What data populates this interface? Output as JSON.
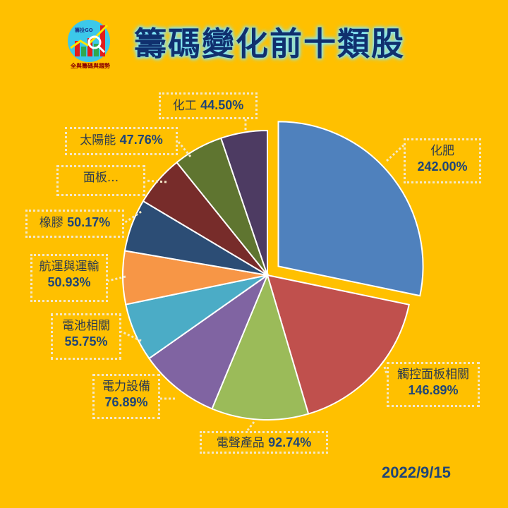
{
  "header": {
    "title": "籌碼變化前十類股",
    "logo": {
      "top_text": "籌投GO",
      "bottom_text": "全與籌碼與趨勢"
    }
  },
  "date": "2022/9/15",
  "colors": {
    "background": "#ffc000",
    "label_text": "#1f4578",
    "title_text": "#10306e"
  },
  "labels": [
    {
      "name": "化肥",
      "value_text": "242.00%",
      "two_line": true
    },
    {
      "name": "觸控面板相關",
      "value_text": "146.89%",
      "two_line": true
    },
    {
      "name": "電聲產品",
      "value_text": "92.74%",
      "two_line": false
    },
    {
      "name": "電力設備",
      "value_text": "76.89%",
      "two_line": true
    },
    {
      "name": "電池相關",
      "value_text": "55.75%",
      "two_line": true
    },
    {
      "name": "航運與運輸",
      "value_text": "50.93%",
      "two_line": true
    },
    {
      "name": "橡膠",
      "value_text": "50.17%",
      "two_line": false
    },
    {
      "name": "面板...",
      "value_text": "",
      "two_line": false
    },
    {
      "name": "太陽能",
      "value_text": "47.76%",
      "two_line": false
    },
    {
      "name": "化工",
      "value_text": "44.50%",
      "two_line": false
    }
  ],
  "chart_data": {
    "type": "pie",
    "title": "籌碼變化前十類股",
    "categories": [
      "化肥",
      "觸控面板相關",
      "電聲產品",
      "電力設備",
      "電池相關",
      "航運與運輸",
      "橡膠",
      "面板",
      "太陽能",
      "化工"
    ],
    "values": [
      242.0,
      146.89,
      92.74,
      76.89,
      55.75,
      50.93,
      50.17,
      48.5,
      47.76,
      44.5
    ],
    "unit": "%",
    "colors": [
      "#4f81bd",
      "#c0504d",
      "#9bbb59",
      "#8064a2",
      "#4bacc6",
      "#f79646",
      "#2c4d75",
      "#772c2a",
      "#5f7530",
      "#4d3b62"
    ],
    "exploded": [
      "化肥"
    ],
    "start_angle_deg": 0,
    "direction": "clockwise",
    "legend": "none",
    "annotations": [
      "2022/9/15"
    ],
    "notes": "面板 value label truncated in image; value estimated from slice angle"
  }
}
